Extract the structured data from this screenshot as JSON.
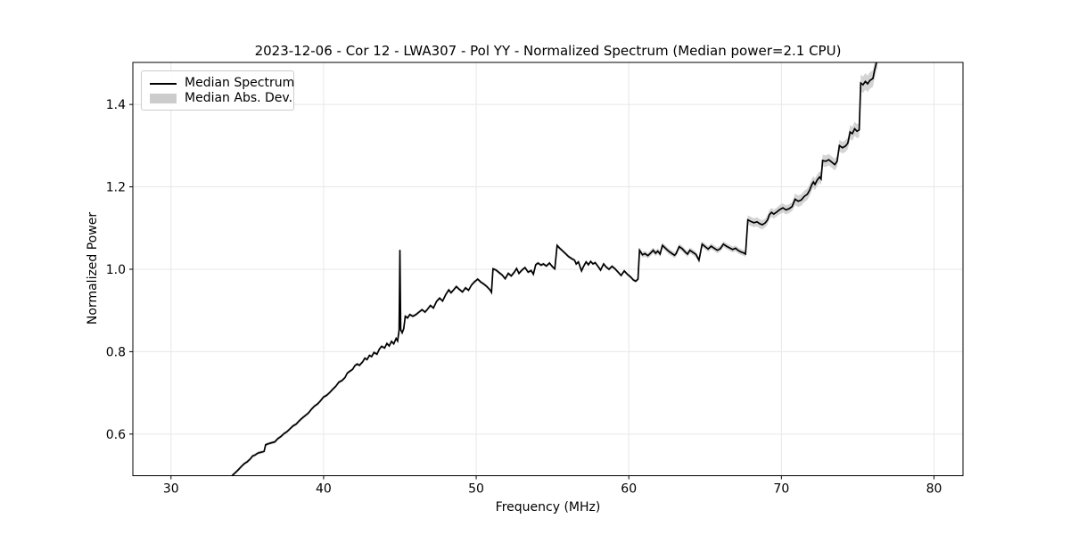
{
  "figure": {
    "title": "2023-12-06 - Cor 12 - LWA307 - Pol YY - Normalized Spectrum (Median power=2.1 CPU)",
    "xlabel": "Frequency (MHz)",
    "ylabel": "Normalized Power",
    "legend": {
      "line_label": "Median Spectrum",
      "band_label": "Median Abs. Dev."
    },
    "colors": {
      "line": "#000000",
      "band": "#c6c6c6",
      "legend_patch": "#cccccc",
      "grid": "#e7e7e7",
      "frame": "#000000",
      "background": "#ffffff",
      "text": "#000000"
    }
  },
  "chart_data": {
    "type": "line",
    "title": "2023-12-06 - Cor 12 - LWA307 - Pol YY - Normalized Spectrum (Median power=2.1 CPU)",
    "xlabel": "Frequency (MHz)",
    "ylabel": "Normalized Power",
    "xlim": [
      27.5,
      81.9
    ],
    "ylim": [
      0.499,
      1.502
    ],
    "xticks": [
      30,
      40,
      50,
      60,
      70,
      80
    ],
    "xtick_labels": [
      "30",
      "40",
      "50",
      "60",
      "70",
      "80"
    ],
    "yticks": [
      0.6,
      0.8,
      1.0,
      1.2,
      1.4
    ],
    "ytick_labels": [
      "0.6",
      "0.8",
      "1.0",
      "1.2",
      "1.4"
    ],
    "grid": true,
    "legend_position": "upper left",
    "series": [
      {
        "name": "Median Spectrum",
        "style": "line",
        "points": [
          [
            34.0,
            0.499
          ],
          [
            34.2,
            0.506
          ],
          [
            34.4,
            0.513
          ],
          [
            34.6,
            0.521
          ],
          [
            34.8,
            0.528
          ],
          [
            35.0,
            0.533
          ],
          [
            35.2,
            0.54
          ],
          [
            35.35,
            0.547
          ],
          [
            35.5,
            0.549
          ],
          [
            35.7,
            0.554
          ],
          [
            35.9,
            0.556
          ],
          [
            36.1,
            0.558
          ],
          [
            36.2,
            0.574
          ],
          [
            36.4,
            0.577
          ],
          [
            36.6,
            0.579
          ],
          [
            36.8,
            0.581
          ],
          [
            37.0,
            0.589
          ],
          [
            37.2,
            0.594
          ],
          [
            37.4,
            0.601
          ],
          [
            37.6,
            0.606
          ],
          [
            37.8,
            0.613
          ],
          [
            38.0,
            0.62
          ],
          [
            38.2,
            0.624
          ],
          [
            38.4,
            0.632
          ],
          [
            38.6,
            0.639
          ],
          [
            38.8,
            0.645
          ],
          [
            39.0,
            0.651
          ],
          [
            39.2,
            0.66
          ],
          [
            39.4,
            0.668
          ],
          [
            39.6,
            0.673
          ],
          [
            39.8,
            0.681
          ],
          [
            40.0,
            0.69
          ],
          [
            40.2,
            0.694
          ],
          [
            40.4,
            0.701
          ],
          [
            40.6,
            0.709
          ],
          [
            40.8,
            0.716
          ],
          [
            41.0,
            0.726
          ],
          [
            41.2,
            0.73
          ],
          [
            41.4,
            0.737
          ],
          [
            41.55,
            0.748
          ],
          [
            41.7,
            0.752
          ],
          [
            41.9,
            0.757
          ],
          [
            42.05,
            0.766
          ],
          [
            42.2,
            0.77
          ],
          [
            42.35,
            0.767
          ],
          [
            42.55,
            0.775
          ],
          [
            42.7,
            0.784
          ],
          [
            42.85,
            0.781
          ],
          [
            43.0,
            0.791
          ],
          [
            43.15,
            0.788
          ],
          [
            43.3,
            0.798
          ],
          [
            43.5,
            0.794
          ],
          [
            43.65,
            0.806
          ],
          [
            43.8,
            0.813
          ],
          [
            44.0,
            0.809
          ],
          [
            44.15,
            0.82
          ],
          [
            44.3,
            0.814
          ],
          [
            44.45,
            0.825
          ],
          [
            44.6,
            0.819
          ],
          [
            44.75,
            0.832
          ],
          [
            44.85,
            0.826
          ],
          [
            44.95,
            0.852
          ],
          [
            45.0,
            1.047
          ],
          [
            45.05,
            0.853
          ],
          [
            45.15,
            0.846
          ],
          [
            45.25,
            0.856
          ],
          [
            45.35,
            0.886
          ],
          [
            45.5,
            0.882
          ],
          [
            45.65,
            0.89
          ],
          [
            45.85,
            0.886
          ],
          [
            46.05,
            0.89
          ],
          [
            46.25,
            0.896
          ],
          [
            46.45,
            0.902
          ],
          [
            46.65,
            0.896
          ],
          [
            46.85,
            0.905
          ],
          [
            47.0,
            0.912
          ],
          [
            47.2,
            0.906
          ],
          [
            47.4,
            0.922
          ],
          [
            47.6,
            0.93
          ],
          [
            47.8,
            0.923
          ],
          [
            48.0,
            0.938
          ],
          [
            48.2,
            0.95
          ],
          [
            48.35,
            0.943
          ],
          [
            48.5,
            0.949
          ],
          [
            48.7,
            0.958
          ],
          [
            48.9,
            0.951
          ],
          [
            49.1,
            0.945
          ],
          [
            49.3,
            0.955
          ],
          [
            49.5,
            0.949
          ],
          [
            49.7,
            0.962
          ],
          [
            49.9,
            0.97
          ],
          [
            50.1,
            0.976
          ],
          [
            50.3,
            0.969
          ],
          [
            50.5,
            0.964
          ],
          [
            50.7,
            0.958
          ],
          [
            50.9,
            0.95
          ],
          [
            51.0,
            0.944
          ],
          [
            51.1,
            1.001
          ],
          [
            51.3,
            0.998
          ],
          [
            51.5,
            0.992
          ],
          [
            51.7,
            0.986
          ],
          [
            51.9,
            0.977
          ],
          [
            52.1,
            0.99
          ],
          [
            52.3,
            0.984
          ],
          [
            52.5,
            0.993
          ],
          [
            52.65,
            1.002
          ],
          [
            52.8,
            0.99
          ],
          [
            53.0,
            0.998
          ],
          [
            53.2,
            1.004
          ],
          [
            53.4,
            0.993
          ],
          [
            53.6,
            0.997
          ],
          [
            53.75,
            0.988
          ],
          [
            53.9,
            1.011
          ],
          [
            54.05,
            1.015
          ],
          [
            54.25,
            1.01
          ],
          [
            54.4,
            1.013
          ],
          [
            54.6,
            1.008
          ],
          [
            54.8,
            1.015
          ],
          [
            55.0,
            1.006
          ],
          [
            55.15,
            1.001
          ],
          [
            55.3,
            1.058
          ],
          [
            55.45,
            1.052
          ],
          [
            55.65,
            1.045
          ],
          [
            55.85,
            1.038
          ],
          [
            56.05,
            1.031
          ],
          [
            56.25,
            1.026
          ],
          [
            56.45,
            1.022
          ],
          [
            56.55,
            1.013
          ],
          [
            56.7,
            1.018
          ],
          [
            56.9,
            0.996
          ],
          [
            57.05,
            1.008
          ],
          [
            57.2,
            1.018
          ],
          [
            57.35,
            1.011
          ],
          [
            57.5,
            1.019
          ],
          [
            57.65,
            1.013
          ],
          [
            57.8,
            1.016
          ],
          [
            58.0,
            1.006
          ],
          [
            58.15,
            0.998
          ],
          [
            58.35,
            1.013
          ],
          [
            58.5,
            1.006
          ],
          [
            58.7,
            1.0
          ],
          [
            58.9,
            1.007
          ],
          [
            59.1,
            1.001
          ],
          [
            59.3,
            0.993
          ],
          [
            59.5,
            0.985
          ],
          [
            59.7,
            0.996
          ],
          [
            59.9,
            0.988
          ],
          [
            60.1,
            0.982
          ],
          [
            60.3,
            0.974
          ],
          [
            60.45,
            0.971
          ],
          [
            60.6,
            0.976
          ],
          [
            60.7,
            1.046
          ],
          [
            60.9,
            1.035
          ],
          [
            61.05,
            1.038
          ],
          [
            61.25,
            1.033
          ],
          [
            61.45,
            1.04
          ],
          [
            61.6,
            1.046
          ],
          [
            61.75,
            1.039
          ],
          [
            61.9,
            1.044
          ],
          [
            62.05,
            1.037
          ],
          [
            62.2,
            1.058
          ],
          [
            62.4,
            1.051
          ],
          [
            62.6,
            1.044
          ],
          [
            62.8,
            1.039
          ],
          [
            63.0,
            1.034
          ],
          [
            63.1,
            1.038
          ],
          [
            63.3,
            1.055
          ],
          [
            63.5,
            1.05
          ],
          [
            63.7,
            1.042
          ],
          [
            63.85,
            1.037
          ],
          [
            64.0,
            1.046
          ],
          [
            64.2,
            1.041
          ],
          [
            64.4,
            1.036
          ],
          [
            64.6,
            1.022
          ],
          [
            64.8,
            1.061
          ],
          [
            65.0,
            1.055
          ],
          [
            65.2,
            1.049
          ],
          [
            65.4,
            1.056
          ],
          [
            65.6,
            1.051
          ],
          [
            65.8,
            1.046
          ],
          [
            66.0,
            1.05
          ],
          [
            66.2,
            1.061
          ],
          [
            66.4,
            1.056
          ],
          [
            66.6,
            1.052
          ],
          [
            66.8,
            1.048
          ],
          [
            67.0,
            1.051
          ],
          [
            67.15,
            1.046
          ],
          [
            67.35,
            1.042
          ],
          [
            67.5,
            1.04
          ],
          [
            67.65,
            1.037
          ],
          [
            67.8,
            1.12
          ],
          [
            68.0,
            1.116
          ],
          [
            68.2,
            1.113
          ],
          [
            68.4,
            1.115
          ],
          [
            68.6,
            1.11
          ],
          [
            68.75,
            1.108
          ],
          [
            68.95,
            1.113
          ],
          [
            69.1,
            1.12
          ],
          [
            69.2,
            1.132
          ],
          [
            69.35,
            1.138
          ],
          [
            69.5,
            1.134
          ],
          [
            69.7,
            1.139
          ],
          [
            69.9,
            1.145
          ],
          [
            70.1,
            1.149
          ],
          [
            70.3,
            1.144
          ],
          [
            70.5,
            1.147
          ],
          [
            70.7,
            1.152
          ],
          [
            70.9,
            1.17
          ],
          [
            71.1,
            1.165
          ],
          [
            71.3,
            1.168
          ],
          [
            71.5,
            1.177
          ],
          [
            71.7,
            1.182
          ],
          [
            71.85,
            1.192
          ],
          [
            72.0,
            1.206
          ],
          [
            72.1,
            1.212
          ],
          [
            72.2,
            1.206
          ],
          [
            72.35,
            1.217
          ],
          [
            72.5,
            1.224
          ],
          [
            72.6,
            1.219
          ],
          [
            72.7,
            1.264
          ],
          [
            72.9,
            1.262
          ],
          [
            73.1,
            1.266
          ],
          [
            73.3,
            1.26
          ],
          [
            73.5,
            1.254
          ],
          [
            73.65,
            1.262
          ],
          [
            73.8,
            1.3
          ],
          [
            74.0,
            1.295
          ],
          [
            74.2,
            1.299
          ],
          [
            74.35,
            1.306
          ],
          [
            74.5,
            1.333
          ],
          [
            74.65,
            1.329
          ],
          [
            74.8,
            1.341
          ],
          [
            74.95,
            1.335
          ],
          [
            75.1,
            1.338
          ],
          [
            75.2,
            1.452
          ],
          [
            75.35,
            1.448
          ],
          [
            75.5,
            1.456
          ],
          [
            75.65,
            1.45
          ],
          [
            75.8,
            1.458
          ],
          [
            76.0,
            1.463
          ],
          [
            76.1,
            1.482
          ],
          [
            76.3,
            1.512
          ]
        ]
      },
      {
        "name": "Median Abs. Dev.",
        "style": "band_around_line",
        "mad_segments": [
          [
            34.0,
            60.65,
            0.004
          ],
          [
            60.65,
            67.75,
            0.007
          ],
          [
            67.75,
            70.85,
            0.011
          ],
          [
            70.85,
            74.45,
            0.014
          ],
          [
            74.45,
            75.15,
            0.017
          ],
          [
            75.15,
            76.4,
            0.02
          ]
        ],
        "spike_extra": {
          "f": 45.0,
          "halfwidth": 0.013
        }
      }
    ]
  }
}
